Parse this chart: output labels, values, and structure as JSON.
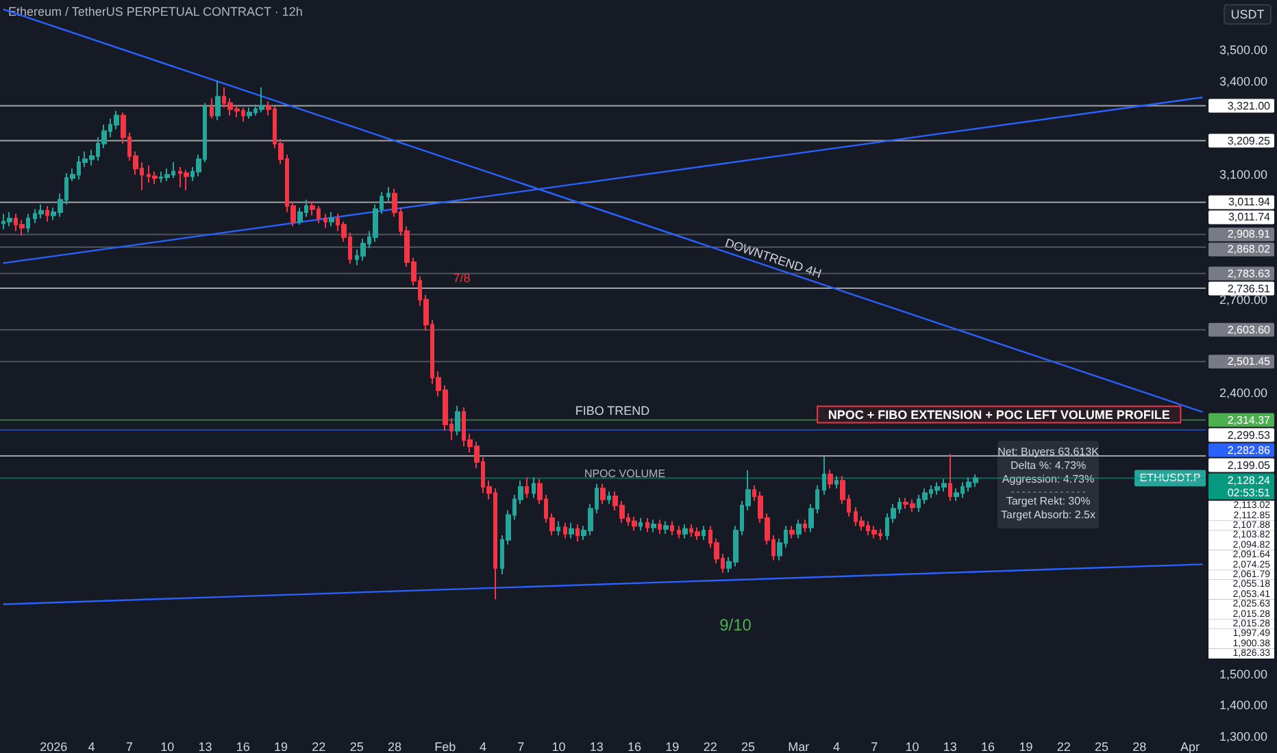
{
  "chart_data": {
    "type": "candlestick",
    "title": "Ethereum / TetherUS PERPETUAL CONTRACT · 12h",
    "ylabel": "USDT",
    "xlim": [
      "2025-12-27T18:00",
      "2026-04-02T06:00"
    ],
    "ylim": [
      1300,
      3660
    ],
    "xticks": [
      {
        "value": "2026-01-01",
        "label": "2026"
      },
      {
        "value": "2026-01-04",
        "label": "4"
      },
      {
        "value": "2026-01-07",
        "label": "7"
      },
      {
        "value": "2026-01-10",
        "label": "10"
      },
      {
        "value": "2026-01-13",
        "label": "13"
      },
      {
        "value": "2026-01-16",
        "label": "16"
      },
      {
        "value": "2026-01-19",
        "label": "19"
      },
      {
        "value": "2026-01-22",
        "label": "22"
      },
      {
        "value": "2026-01-25",
        "label": "25"
      },
      {
        "value": "2026-01-28",
        "label": "28"
      },
      {
        "value": "2026-02-01",
        "label": "Feb"
      },
      {
        "value": "2026-02-04",
        "label": "4"
      },
      {
        "value": "2026-02-07",
        "label": "7"
      },
      {
        "value": "2026-02-10",
        "label": "10"
      },
      {
        "value": "2026-02-13",
        "label": "13"
      },
      {
        "value": "2026-02-16",
        "label": "16"
      },
      {
        "value": "2026-02-19",
        "label": "19"
      },
      {
        "value": "2026-02-22",
        "label": "22"
      },
      {
        "value": "2026-02-25",
        "label": "25"
      },
      {
        "value": "2026-03-01",
        "label": "Mar"
      },
      {
        "value": "2026-03-04",
        "label": "4"
      },
      {
        "value": "2026-03-07",
        "label": "7"
      },
      {
        "value": "2026-03-10",
        "label": "10"
      },
      {
        "value": "2026-03-13",
        "label": "13"
      },
      {
        "value": "2026-03-16",
        "label": "16"
      },
      {
        "value": "2026-03-19",
        "label": "19"
      },
      {
        "value": "2026-03-22",
        "label": "22"
      },
      {
        "value": "2026-03-25",
        "label": "25"
      },
      {
        "value": "2026-03-28",
        "label": "28"
      },
      {
        "value": "2026-04-01",
        "label": "Apr"
      }
    ],
    "yticks": [
      {
        "value": 3500,
        "label": "3,500.00"
      },
      {
        "value": 3400,
        "label": "3,400.00"
      },
      {
        "value": 3100,
        "label": "3,100.00"
      },
      {
        "value": 2700,
        "label": "2,700.00"
      },
      {
        "value": 2400,
        "label": "2,400.00"
      },
      {
        "value": 1500,
        "label": "1,500.00"
      },
      {
        "value": 1400,
        "label": "1,400.00"
      },
      {
        "value": 1300,
        "label": "1,300.00"
      }
    ],
    "grid": false,
    "legend": false,
    "series": [
      {
        "name": "ETHUSDT.P",
        "x": [
          "2025-12-28T00:00",
          "2025-12-28T12:00",
          "2025-12-29T00:00",
          "2025-12-29T12:00",
          "2025-12-30T00:00",
          "2025-12-30T12:00",
          "2025-12-31T00:00",
          "2025-12-31T12:00",
          "2026-01-01T00:00",
          "2026-01-01T12:00",
          "2026-01-02T00:00",
          "2026-01-02T12:00",
          "2026-01-03T00:00",
          "2026-01-03T12:00",
          "2026-01-04T00:00",
          "2026-01-04T12:00",
          "2026-01-05T00:00",
          "2026-01-05T12:00",
          "2026-01-06T00:00",
          "2026-01-06T12:00",
          "2026-01-07T00:00",
          "2026-01-07T12:00",
          "2026-01-08T00:00",
          "2026-01-08T12:00",
          "2026-01-09T00:00",
          "2026-01-09T12:00",
          "2026-01-10T00:00",
          "2026-01-10T12:00",
          "2026-01-11T00:00",
          "2026-01-11T12:00",
          "2026-01-12T00:00",
          "2026-01-12T12:00",
          "2026-01-13T00:00",
          "2026-01-13T12:00",
          "2026-01-14T00:00",
          "2026-01-14T12:00",
          "2026-01-15T00:00",
          "2026-01-15T12:00",
          "2026-01-16T00:00",
          "2026-01-16T12:00",
          "2026-01-17T00:00",
          "2026-01-17T12:00",
          "2026-01-18T00:00",
          "2026-01-18T12:00",
          "2026-01-19T00:00",
          "2026-01-19T12:00",
          "2026-01-20T00:00",
          "2026-01-20T12:00",
          "2026-01-21T00:00",
          "2026-01-21T12:00",
          "2026-01-22T00:00",
          "2026-01-22T12:00",
          "2026-01-23T00:00",
          "2026-01-23T12:00",
          "2026-01-24T00:00",
          "2026-01-24T12:00",
          "2026-01-25T00:00",
          "2026-01-25T12:00",
          "2026-01-26T00:00",
          "2026-01-26T12:00",
          "2026-01-27T00:00",
          "2026-01-27T12:00",
          "2026-01-28T00:00",
          "2026-01-28T12:00",
          "2026-01-29T00:00",
          "2026-01-29T12:00",
          "2026-01-30T00:00",
          "2026-01-30T12:00",
          "2026-01-31T00:00",
          "2026-01-31T12:00",
          "2026-02-01T00:00",
          "2026-02-01T12:00",
          "2026-02-02T00:00",
          "2026-02-02T12:00",
          "2026-02-03T00:00",
          "2026-02-03T12:00",
          "2026-02-04T00:00",
          "2026-02-04T12:00",
          "2026-02-05T00:00",
          "2026-02-05T12:00",
          "2026-02-06T00:00",
          "2026-02-06T12:00",
          "2026-02-07T00:00",
          "2026-02-07T12:00",
          "2026-02-08T00:00",
          "2026-02-08T12:00",
          "2026-02-09T00:00",
          "2026-02-09T12:00",
          "2026-02-10T00:00",
          "2026-02-10T12:00",
          "2026-02-11T00:00",
          "2026-02-11T12:00",
          "2026-02-12T00:00",
          "2026-02-12T12:00",
          "2026-02-13T00:00",
          "2026-02-13T12:00",
          "2026-02-14T00:00",
          "2026-02-14T12:00",
          "2026-02-15T00:00",
          "2026-02-15T12:00",
          "2026-02-16T00:00",
          "2026-02-16T12:00",
          "2026-02-17T00:00",
          "2026-02-17T12:00",
          "2026-02-18T00:00",
          "2026-02-18T12:00",
          "2026-02-19T00:00",
          "2026-02-19T12:00",
          "2026-02-20T00:00",
          "2026-02-20T12:00",
          "2026-02-21T00:00",
          "2026-02-21T12:00",
          "2026-02-22T00:00",
          "2026-02-22T12:00",
          "2026-02-23T00:00",
          "2026-02-23T12:00",
          "2026-02-24T00:00",
          "2026-02-24T12:00",
          "2026-02-25T00:00",
          "2026-02-25T12:00",
          "2026-02-26T00:00",
          "2026-02-26T12:00",
          "2026-02-27T00:00",
          "2026-02-27T12:00",
          "2026-02-28T00:00",
          "2026-02-28T12:00",
          "2026-03-01T00:00",
          "2026-03-01T12:00",
          "2026-03-02T00:00",
          "2026-03-02T12:00",
          "2026-03-03T00:00",
          "2026-03-03T12:00",
          "2026-03-04T00:00",
          "2026-03-04T12:00",
          "2026-03-05T00:00",
          "2026-03-05T12:00",
          "2026-03-06T00:00",
          "2026-03-06T12:00",
          "2026-03-07T00:00",
          "2026-03-07T12:00",
          "2026-03-08T00:00",
          "2026-03-08T12:00",
          "2026-03-09T00:00",
          "2026-03-09T12:00",
          "2026-03-10T00:00",
          "2026-03-10T12:00",
          "2026-03-11T00:00",
          "2026-03-11T12:00",
          "2026-03-12T00:00",
          "2026-03-12T12:00",
          "2026-03-13T00:00",
          "2026-03-13T12:00",
          "2026-03-14T00:00",
          "2026-03-14T12:00",
          "2026-03-15T00:00"
        ],
        "ohlc": [
          [
            2945,
            2975,
            2925,
            2950
          ],
          [
            2950,
            2980,
            2935,
            2960
          ],
          [
            2960,
            2975,
            2920,
            2940
          ],
          [
            2940,
            2955,
            2905,
            2930
          ],
          [
            2930,
            2975,
            2915,
            2960
          ],
          [
            2960,
            2990,
            2945,
            2975
          ],
          [
            2975,
            3005,
            2960,
            2985
          ],
          [
            2985,
            3000,
            2950,
            2970
          ],
          [
            2970,
            2995,
            2955,
            2980
          ],
          [
            2980,
            3040,
            2965,
            3020
          ],
          [
            3020,
            3105,
            3005,
            3090
          ],
          [
            3090,
            3120,
            3080,
            3100
          ],
          [
            3100,
            3160,
            3085,
            3140
          ],
          [
            3140,
            3175,
            3125,
            3150
          ],
          [
            3150,
            3180,
            3130,
            3160
          ],
          [
            3160,
            3220,
            3145,
            3200
          ],
          [
            3200,
            3260,
            3185,
            3240
          ],
          [
            3240,
            3280,
            3220,
            3260
          ],
          [
            3260,
            3305,
            3245,
            3290
          ],
          [
            3290,
            3300,
            3200,
            3220
          ],
          [
            3220,
            3235,
            3145,
            3160
          ],
          [
            3160,
            3175,
            3100,
            3120
          ],
          [
            3120,
            3140,
            3050,
            3100
          ],
          [
            3100,
            3130,
            3075,
            3095
          ],
          [
            3095,
            3110,
            3070,
            3090
          ],
          [
            3090,
            3110,
            3075,
            3092
          ],
          [
            3092,
            3120,
            3080,
            3100
          ],
          [
            3100,
            3140,
            3090,
            3110
          ],
          [
            3110,
            3125,
            3060,
            3105
          ],
          [
            3105,
            3115,
            3050,
            3095
          ],
          [
            3095,
            3125,
            3080,
            3110
          ],
          [
            3110,
            3165,
            3095,
            3150
          ],
          [
            3150,
            3330,
            3140,
            3317
          ],
          [
            3317,
            3345,
            3280,
            3290
          ],
          [
            3290,
            3400,
            3275,
            3350
          ],
          [
            3350,
            3380,
            3315,
            3330
          ],
          [
            3330,
            3345,
            3290,
            3310
          ],
          [
            3310,
            3325,
            3285,
            3305
          ],
          [
            3305,
            3315,
            3270,
            3290
          ],
          [
            3290,
            3315,
            3280,
            3300
          ],
          [
            3300,
            3325,
            3290,
            3310
          ],
          [
            3310,
            3380,
            3300,
            3320
          ],
          [
            3320,
            3335,
            3290,
            3310
          ],
          [
            3310,
            3320,
            3185,
            3200
          ],
          [
            3200,
            3215,
            3135,
            3150
          ],
          [
            3150,
            3165,
            2980,
            3000
          ],
          [
            3000,
            3015,
            2935,
            2950
          ],
          [
            2950,
            2995,
            2940,
            2980
          ],
          [
            2980,
            3020,
            2965,
            3000
          ],
          [
            3000,
            3015,
            2970,
            2990
          ],
          [
            2990,
            3000,
            2945,
            2960
          ],
          [
            2960,
            2975,
            2930,
            2950
          ],
          [
            2950,
            2980,
            2935,
            2960
          ],
          [
            2960,
            2975,
            2920,
            2940
          ],
          [
            2940,
            2950,
            2885,
            2900
          ],
          [
            2900,
            2915,
            2815,
            2830
          ],
          [
            2830,
            2860,
            2810,
            2840
          ],
          [
            2840,
            2895,
            2825,
            2880
          ],
          [
            2880,
            2920,
            2865,
            2900
          ],
          [
            2900,
            3005,
            2885,
            2990
          ],
          [
            2990,
            3045,
            2975,
            3030
          ],
          [
            3030,
            3060,
            3015,
            3040
          ],
          [
            3040,
            3055,
            2965,
            2980
          ],
          [
            2980,
            2995,
            2905,
            2920
          ],
          [
            2920,
            2935,
            2805,
            2820
          ],
          [
            2820,
            2835,
            2745,
            2760
          ],
          [
            2760,
            2775,
            2680,
            2700
          ],
          [
            2700,
            2715,
            2600,
            2620
          ],
          [
            2620,
            2635,
            2430,
            2450
          ],
          [
            2450,
            2470,
            2390,
            2410
          ],
          [
            2410,
            2425,
            2280,
            2300
          ],
          [
            2300,
            2320,
            2250,
            2280
          ],
          [
            2280,
            2360,
            2265,
            2340
          ],
          [
            2340,
            2355,
            2230,
            2250
          ],
          [
            2250,
            2270,
            2210,
            2230
          ],
          [
            2230,
            2245,
            2160,
            2180
          ],
          [
            2180,
            2195,
            2080,
            2100
          ],
          [
            2100,
            2120,
            2060,
            2080
          ],
          [
            2080,
            2095,
            1740,
            1840
          ],
          [
            1840,
            1945,
            1820,
            1930
          ],
          [
            1930,
            2025,
            1915,
            2010
          ],
          [
            2010,
            2075,
            1995,
            2060
          ],
          [
            2060,
            2120,
            2045,
            2100
          ],
          [
            2100,
            2130,
            2065,
            2080
          ],
          [
            2080,
            2130,
            2065,
            2110
          ],
          [
            2110,
            2125,
            2045,
            2060
          ],
          [
            2060,
            2075,
            1985,
            2000
          ],
          [
            2000,
            2015,
            1945,
            1960
          ],
          [
            1960,
            1990,
            1945,
            1970
          ],
          [
            1970,
            1985,
            1935,
            1950
          ],
          [
            1950,
            1985,
            1935,
            1965
          ],
          [
            1965,
            1980,
            1925,
            1945
          ],
          [
            1945,
            1975,
            1930,
            1960
          ],
          [
            1960,
            2045,
            1945,
            2030
          ],
          [
            2030,
            2110,
            2015,
            2095
          ],
          [
            2095,
            2110,
            2045,
            2060
          ],
          [
            2060,
            2085,
            2045,
            2070
          ],
          [
            2070,
            2085,
            2025,
            2040
          ],
          [
            2040,
            2055,
            1985,
            2000
          ],
          [
            2000,
            2015,
            1975,
            1990
          ],
          [
            1990,
            2005,
            1960,
            1975
          ],
          [
            1975,
            2000,
            1960,
            1985
          ],
          [
            1985,
            2000,
            1955,
            1970
          ],
          [
            1970,
            1995,
            1955,
            1980
          ],
          [
            1980,
            1995,
            1950,
            1965
          ],
          [
            1965,
            1990,
            1950,
            1975
          ],
          [
            1975,
            1990,
            1945,
            1960
          ],
          [
            1960,
            1975,
            1935,
            1950
          ],
          [
            1950,
            1980,
            1935,
            1965
          ],
          [
            1965,
            1980,
            1940,
            1955
          ],
          [
            1955,
            1970,
            1930,
            1945
          ],
          [
            1945,
            1975,
            1930,
            1960
          ],
          [
            1960,
            1975,
            1905,
            1920
          ],
          [
            1920,
            1935,
            1855,
            1870
          ],
          [
            1870,
            1885,
            1825,
            1840
          ],
          [
            1840,
            1875,
            1826,
            1860
          ],
          [
            1860,
            1975,
            1845,
            1960
          ],
          [
            1960,
            2055,
            1945,
            2040
          ],
          [
            2040,
            2153,
            2025,
            2090
          ],
          [
            2090,
            2105,
            2055,
            2070
          ],
          [
            2070,
            2085,
            1985,
            2000
          ],
          [
            2000,
            2015,
            1915,
            1930
          ],
          [
            1930,
            1945,
            1865,
            1880
          ],
          [
            1880,
            1935,
            1865,
            1920
          ],
          [
            1920,
            1975,
            1905,
            1960
          ],
          [
            1960,
            1975,
            1935,
            1950
          ],
          [
            1950,
            1995,
            1935,
            1980
          ],
          [
            1980,
            1995,
            1955,
            1970
          ],
          [
            1970,
            2045,
            1955,
            2030
          ],
          [
            2030,
            2105,
            2015,
            2090
          ],
          [
            2090,
            2197,
            2075,
            2140
          ],
          [
            2140,
            2155,
            2095,
            2110
          ],
          [
            2110,
            2135,
            2095,
            2120
          ],
          [
            2120,
            2135,
            2045,
            2060
          ],
          [
            2060,
            2075,
            2005,
            2020
          ],
          [
            2020,
            2035,
            1975,
            1990
          ],
          [
            1990,
            2005,
            1960,
            1975
          ],
          [
            1975,
            1990,
            1945,
            1960
          ],
          [
            1960,
            1975,
            1935,
            1950
          ],
          [
            1950,
            1965,
            1930,
            1945
          ],
          [
            1945,
            2015,
            1930,
            2000
          ],
          [
            2000,
            2045,
            1985,
            2030
          ],
          [
            2030,
            2065,
            2015,
            2050
          ],
          [
            2050,
            2065,
            2030,
            2045
          ],
          [
            2045,
            2060,
            2020,
            2035
          ],
          [
            2035,
            2075,
            2020,
            2060
          ],
          [
            2060,
            2095,
            2045,
            2080
          ],
          [
            2080,
            2105,
            2065,
            2090
          ],
          [
            2090,
            2115,
            2075,
            2100
          ],
          [
            2100,
            2125,
            2085,
            2110
          ],
          [
            2110,
            2206,
            2055,
            2070
          ],
          [
            2070,
            2095,
            2055,
            2080
          ],
          [
            2080,
            2115,
            2065,
            2100
          ],
          [
            2100,
            2130,
            2085,
            2115
          ],
          [
            2115,
            2140,
            2100,
            2128.24
          ]
        ]
      },
      {
        "type": "line",
        "color": "#2962ff",
        "x": [
          "2025-12-28T00:00",
          "2026-04-02T00:00"
        ],
        "values": [
          3630,
          2340
        ]
      },
      {
        "type": "line",
        "color": "#2962ff",
        "x": [
          "2025-12-28T00:00",
          "2026-04-02T00:00"
        ],
        "values": [
          2817,
          3348
        ]
      },
      {
        "type": "line",
        "color": "#2962ff",
        "x": [
          "2025-12-28T00:00",
          "2026-04-02T00:00"
        ],
        "values": [
          1724,
          1852
        ]
      }
    ],
    "ref_lines": [
      {
        "axis": "y",
        "value": 3321,
        "label": "3,321.00",
        "color": "#ffffff"
      },
      {
        "axis": "y",
        "value": 3209.25,
        "label": "3,209.25",
        "color": "#ffffff"
      },
      {
        "axis": "y",
        "value": 3011.94,
        "label": "3,011.94",
        "color": "#ffffff"
      },
      {
        "axis": "y",
        "value": 2908.91,
        "label": "2,908.91",
        "color": "#787b86"
      },
      {
        "axis": "y",
        "value": 2868.02,
        "label": "2,868.02",
        "color": "#787b86"
      },
      {
        "axis": "y",
        "value": 2783.63,
        "label": "2,783.63",
        "color": "#787b86"
      },
      {
        "axis": "y",
        "value": 2736.51,
        "label": "2,736.51",
        "color": "#ffffff"
      },
      {
        "axis": "y",
        "value": 2603.6,
        "label": "2,603.60",
        "color": "#787b86"
      },
      {
        "axis": "y",
        "value": 2501.45,
        "label": "2,501.45",
        "color": "#787b86"
      },
      {
        "axis": "y",
        "value": 2314.37,
        "label": "2,314.37",
        "color": "#4caf50"
      },
      {
        "axis": "y",
        "value": 2282.86,
        "label": "2,282.86",
        "color": "#2962ff"
      },
      {
        "axis": "y",
        "value": 2199.05,
        "label": "2,199.05",
        "color": "#ffffff"
      },
      {
        "axis": "y",
        "value": 2128.24,
        "label": "2,128.24\n02:53:51",
        "color": "#089981"
      }
    ],
    "annotations": [
      {
        "text": "DOWNTREND 4H",
        "x": "2026-02-27",
        "y": 2802
      },
      {
        "text": "NPOC + FIBO EXTENSION + POC LEFT VOLUME PROFILE",
        "x": "2026-03-16T21:00",
        "y": 2314.37
      },
      {
        "text": "9/10",
        "x": "2026-02-24T00:00",
        "y": 1825
      },
      "3,011.74",
      "2,299.53",
      "7/8",
      "NPOC VOLUME",
      "FIBO TREND",
      "Net: Buyers 63.613K",
      "Delta %: 4.73%",
      "Aggression: 4.73%",
      "Target Rekt: 30%",
      "Target Absorb: 2.5x",
      "2,113.02",
      "2,112.85",
      "2,107.88",
      "2,103.82",
      "2,094.82",
      "2,091.64",
      "2,074.25",
      "2,061.79",
      "2,055.18",
      "2,053.41",
      "2,025.63",
      "2,015.28",
      "2,015.28",
      "1,997.49",
      "1,900.38",
      "1,826.33"
    ]
  }
}
